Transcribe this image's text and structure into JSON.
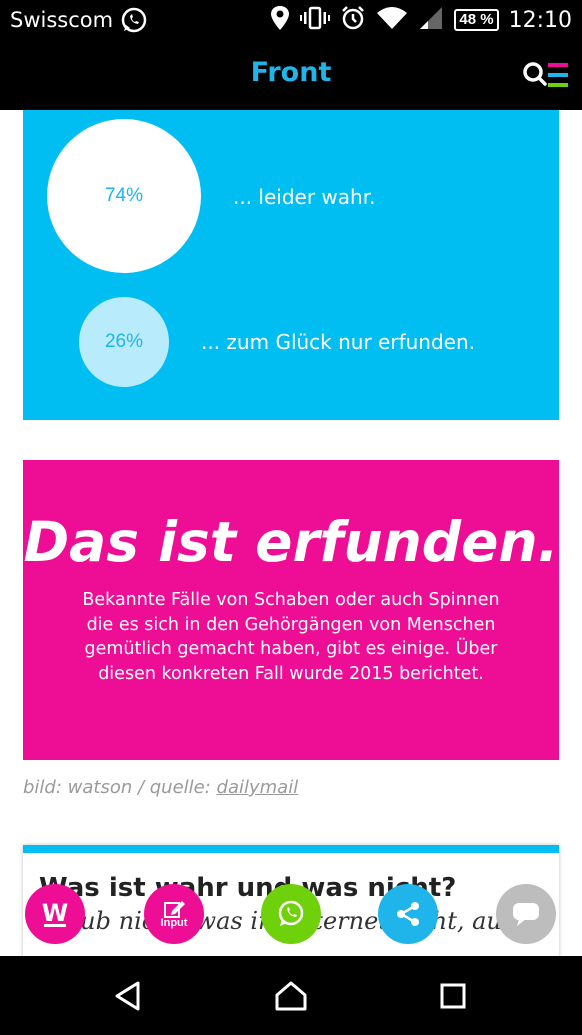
{
  "statusbar": {
    "carrier": "Swisscom",
    "battery": "48 %",
    "time": "12:10"
  },
  "appbar": {
    "title": "Front"
  },
  "poll": {
    "results": [
      {
        "percent": "74%",
        "label": "... leider wahr.",
        "value": 74
      },
      {
        "percent": "26%",
        "label": "... zum Glück nur erfunden.",
        "value": 26
      }
    ]
  },
  "verdict": {
    "headline": "Das ist erfunden.",
    "lines": [
      "Bekannte Fälle von Schaben oder auch Spinnen",
      "die es sich in den Gehörgängen von Menschen",
      "gemütlich gemacht haben, gibt es einige. Über",
      "diesen konkreten Fall wurde 2015 berichtet."
    ]
  },
  "caption": {
    "prefix": "bild: watson / quelle: ",
    "link": "dailymail"
  },
  "card": {
    "title": "Was ist wahr und was nicht?",
    "subtitle": "Glaub nicht, was im Internet steht, ausser"
  },
  "fabs": {
    "input_label": "Input",
    "w_label": "W"
  },
  "colors": {
    "cyan": "#00bdf2",
    "magenta": "#ee0d95",
    "green": "#6fd00c",
    "grey": "#bdbdbd"
  }
}
